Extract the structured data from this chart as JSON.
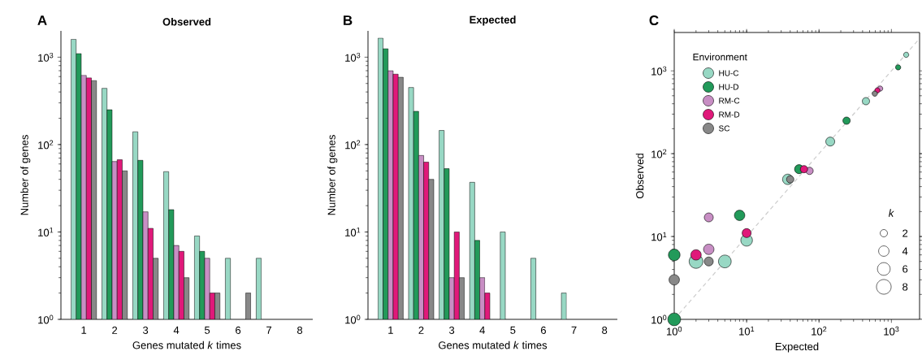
{
  "chart_data": [
    {
      "type": "bar",
      "title": "Observed",
      "xlabel": "Genes mutated *k* times",
      "ylabel": "Number of genes",
      "annotations": [
        "A"
      ],
      "categories": [
        "1",
        "2",
        "3",
        "4",
        "5",
        "6",
        "7",
        "8"
      ],
      "log": "y",
      "ylim": [
        1,
        2000
      ],
      "yticks": [
        {
          "value": 1,
          "label": "10$^{0}$"
        },
        {
          "value": 10,
          "label": "10$^{1}$"
        },
        {
          "value": 100,
          "label": "10$^{2}$"
        },
        {
          "value": 1000,
          "label": "10$^{3}$"
        }
      ],
      "grid": false,
      "series": [
        {
          "color": "#98d8c4",
          "values": [
            1600,
            440,
            140,
            49,
            9,
            5,
            5,
            null
          ]
        },
        {
          "color": "#229a5a",
          "values": [
            1100,
            250,
            66,
            18,
            6,
            null,
            null,
            null
          ]
        },
        {
          "color": "#c88ec4",
          "values": [
            620,
            64,
            17,
            7,
            5,
            null,
            null,
            null
          ]
        },
        {
          "color": "#e0197a",
          "values": [
            580,
            67,
            11,
            6,
            2,
            null,
            null,
            null
          ]
        },
        {
          "color": "#888888",
          "values": [
            540,
            50,
            5,
            3,
            2,
            2,
            null,
            null
          ]
        }
      ]
    },
    {
      "type": "bar",
      "title": "Expected",
      "xlabel": "Genes mutated *k* times",
      "ylabel": "Number of genes",
      "annotations": [
        "B"
      ],
      "categories": [
        "1",
        "2",
        "3",
        "4",
        "5",
        "6",
        "7",
        "8"
      ],
      "log": "y",
      "ylim": [
        1,
        2000
      ],
      "yticks": [
        {
          "value": 1,
          "label": "10$^{0}$"
        },
        {
          "value": 10,
          "label": "10$^{1}$"
        },
        {
          "value": 100,
          "label": "10$^{2}$"
        },
        {
          "value": 1000,
          "label": "10$^{3}$"
        }
      ],
      "grid": false,
      "series": [
        {
          "color": "#98d8c4",
          "values": [
            1650,
            450,
            145,
            37,
            10,
            5,
            2,
            null
          ]
        },
        {
          "color": "#229a5a",
          "values": [
            1250,
            240,
            53,
            8,
            null,
            null,
            null,
            null
          ]
        },
        {
          "color": "#c88ec4",
          "values": [
            700,
            75,
            3,
            3,
            null,
            null,
            null,
            null
          ]
        },
        {
          "color": "#e0197a",
          "values": [
            640,
            63,
            10,
            2,
            null,
            null,
            null,
            null
          ]
        },
        {
          "color": "#888888",
          "values": [
            590,
            40,
            3,
            null,
            null,
            null,
            null,
            null
          ]
        }
      ]
    },
    {
      "type": "bubble",
      "xlabel": "Expected",
      "ylabel": "Observed",
      "legend_title": "Environment",
      "annotations": [
        "C",
        "k"
      ],
      "log": "xy",
      "xlim": [
        1,
        2450
      ],
      "ylim": [
        1,
        2900
      ],
      "xticks": [
        {
          "value": 1,
          "label": "10$^{0}$"
        },
        {
          "value": 10,
          "label": "10$^{1}$"
        },
        {
          "value": 100,
          "label": "10$^{2}$"
        },
        {
          "value": 1000,
          "label": "10$^{3}$"
        }
      ],
      "yticks": [
        {
          "value": 1,
          "label": "10$^{0}$"
        },
        {
          "value": 10,
          "label": "10$^{1}$"
        },
        {
          "value": 100,
          "label": "10$^{2}$"
        },
        {
          "value": 1000,
          "label": "10$^{3}$"
        }
      ],
      "legend": "top left",
      "grid": false,
      "size_legend": [
        2,
        4,
        6,
        8
      ],
      "series": [
        {
          "type": "line",
          "color": "#cccccc",
          "line_style": "dashed",
          "x": [
            1,
            2450
          ],
          "values": [
            1,
            2450
          ]
        },
        {
          "name": "HU-C",
          "color": "#98d8c4",
          "x": [
            1600,
            445,
            143,
            37,
            10,
            5,
            2
          ],
          "values": [
            1560,
            430,
            140,
            49,
            9,
            5,
            5
          ],
          "sizes": [
            1,
            2,
            3,
            4,
            5,
            6,
            7
          ]
        },
        {
          "name": "HU-D",
          "color": "#229a5a",
          "x": [
            1240,
            240,
            53,
            8,
            1,
            1
          ],
          "values": [
            1100,
            250,
            65,
            18,
            6,
            1
          ],
          "sizes": [
            1,
            2,
            3,
            4,
            5,
            6
          ]
        },
        {
          "name": "RM-C",
          "color": "#c88ec4",
          "x": [
            700,
            74,
            3,
            3
          ],
          "values": [
            610,
            62,
            17,
            7
          ],
          "sizes": [
            1,
            2,
            3,
            4
          ]
        },
        {
          "name": "RM-D",
          "color": "#e0197a",
          "x": [
            640,
            62,
            10,
            2
          ],
          "values": [
            580,
            65,
            11,
            6
          ],
          "sizes": [
            1,
            2,
            3,
            4
          ]
        },
        {
          "name": "SC",
          "color": "#888888",
          "x": [
            590,
            40,
            3,
            1
          ],
          "values": [
            530,
            49,
            5,
            3
          ],
          "sizes": [
            1,
            2,
            3,
            4
          ]
        }
      ]
    }
  ]
}
